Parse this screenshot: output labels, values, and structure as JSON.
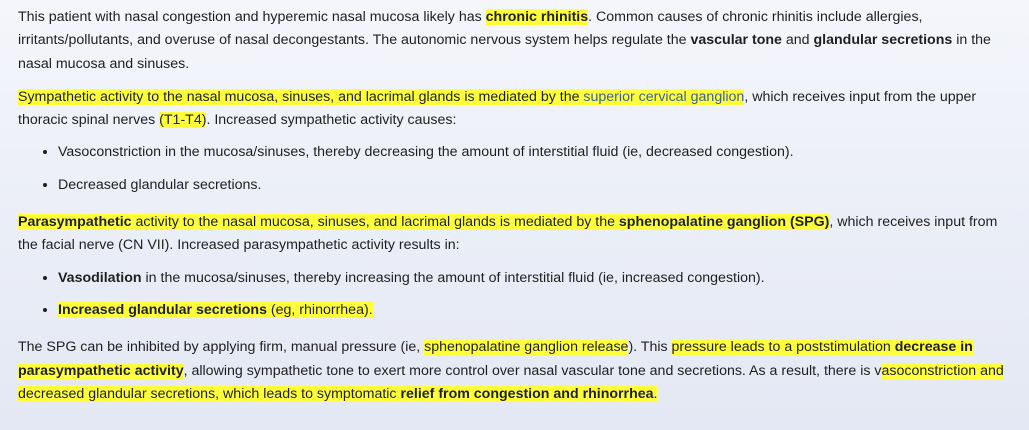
{
  "p1": {
    "t1": "This patient with nasal congestion and hyperemic nasal mucosa likely has ",
    "b1": "chronic rhinitis",
    "t2": ".  Common causes of chronic rhinitis include allergies, irritants/pollutants, and overuse of nasal decongestants.  The autonomic nervous system helps regulate the ",
    "b2": "vascular tone",
    "t3": " and ",
    "b3": "glandular secretions",
    "t4": " in the nasal mucosa and sinuses."
  },
  "p2": {
    "h1": "Sympathetic activity to the nasal mucosa, sinuses, and lacrimal glands is mediated by the ",
    "link1": "superior cervical ganglion",
    "t1": ", which receives input from the upper thoracic spinal nerves ",
    "h2": "(T1-T4)",
    "t2": ".  Increased sympathetic activity causes:"
  },
  "list1": [
    "Vasoconstriction in the mucosa/sinuses, thereby decreasing the amount of interstitial fluid (ie, decreased congestion).",
    "Decreased glandular secretions."
  ],
  "p3": {
    "hb1": "Parasympathetic",
    "h1": " activity to the nasal mucosa, sinuses, and lacrimal glands is mediated by the ",
    "hb2": "sphenopalatine ganglion (SPG)",
    "t1": ", which receives input from the facial nerve (CN VII).  Increased parasympathetic activity results in:"
  },
  "list2": {
    "item1_b": "Vasodilation",
    "item1_t": " in the mucosa/sinuses, thereby increasing the amount of interstitial fluid (ie, increased congestion).",
    "item2_b": "Increased glandular secretions",
    "item2_t": " (eg, rhinorrhea)."
  },
  "p4": {
    "t1": "The SPG can be inhibited by applying firm, manual pressure (ie, ",
    "h1": "sphenopalatine ganglion release",
    "t2": ").  This ",
    "h2": "pressure leads to a poststimulation ",
    "hb1": "decrease in parasympathetic activity",
    "t3": ", allowing sympathetic tone to exert more control over nasal vascular tone and secretions.  As a result, there is v",
    "h3": "asoconstriction and decreased glandular secretions, which leads to symptomatic ",
    "hb2": "relief from congestion and rhinorrhea",
    "h4": "."
  }
}
